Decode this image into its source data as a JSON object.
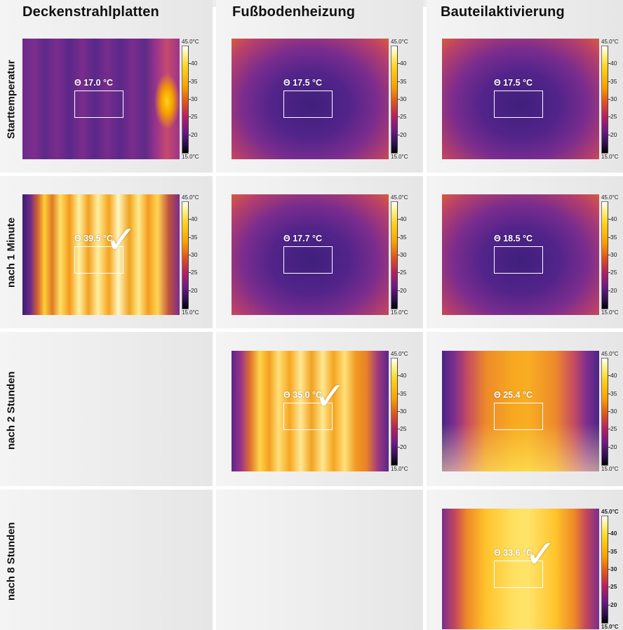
{
  "columns": [
    "Deckenstrahlplatten",
    "Fußbodenheizung",
    "Bauteilaktivierung"
  ],
  "rows": [
    "Starttemperatur",
    "nach 1 Minute",
    "nach 2 Stunden",
    "nach 8 Stunden"
  ],
  "scale": {
    "max_label": "45.0°C",
    "min_label": "15.0°C",
    "ticks": [
      "40",
      "35",
      "30",
      "25",
      "20"
    ]
  },
  "roi_symbol": "Θ",
  "images": [
    {
      "key": "decke_start",
      "column": "Deckenstrahlplatten",
      "row": "Starttemperatur",
      "reading": "Θ 17.0 °C",
      "checked": false,
      "palette": "cool-stripes-hot-right"
    },
    {
      "key": "fuss_start",
      "column": "Fußbodenheizung",
      "row": "Starttemperatur",
      "reading": "Θ 17.5 °C",
      "checked": false,
      "palette": "cool-warm-edges"
    },
    {
      "key": "bauteil_start",
      "column": "Bauteilaktivierung",
      "row": "Starttemperatur",
      "reading": "Θ 17.5 °C",
      "checked": false,
      "palette": "cool-warm-edges"
    },
    {
      "key": "decke_1min",
      "column": "Deckenstrahlplatten",
      "row": "nach 1 Minute",
      "reading": "Θ 39.5 °C",
      "checked": true,
      "palette": "hot-stripes"
    },
    {
      "key": "fuss_1min",
      "column": "Fußbodenheizung",
      "row": "nach 1 Minute",
      "reading": "Θ 17.7 °C",
      "checked": false,
      "palette": "cool-warm-edges"
    },
    {
      "key": "bauteil_1min",
      "column": "Bauteilaktivierung",
      "row": "nach 1 Minute",
      "reading": "Θ 18.5 °C",
      "checked": false,
      "palette": "cool-warm-edges"
    },
    {
      "key": "fuss_2h",
      "column": "Fußbodenheizung",
      "row": "nach 2 Stunden",
      "reading": "Θ 35.0 °C",
      "checked": true,
      "palette": "warm-stripes"
    },
    {
      "key": "bauteil_2h",
      "column": "Bauteilaktivierung",
      "row": "nach 2 Stunden",
      "reading": "Θ 25.4 °C",
      "checked": false,
      "palette": "warm-center"
    },
    {
      "key": "bauteil_8h",
      "column": "Bauteilaktivierung",
      "row": "nach 8 Stunden",
      "reading": "Θ 33.6 °C",
      "checked": true,
      "palette": "hot-center"
    }
  ],
  "check_symbol": "✓"
}
